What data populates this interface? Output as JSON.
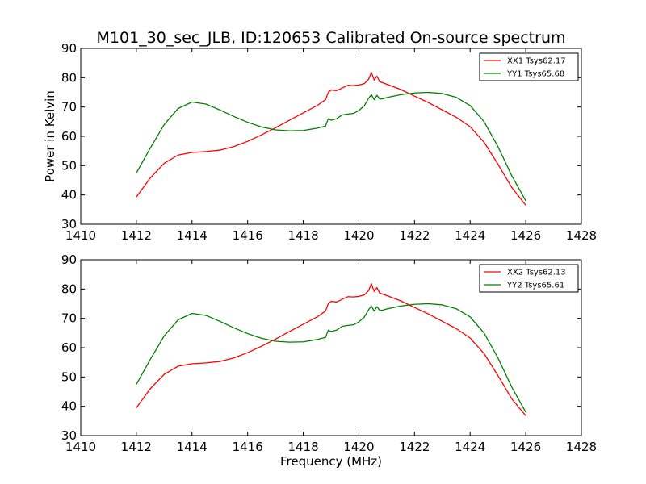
{
  "title": "M101_30_sec_JLB, ID:120653 Calibrated On-source spectrum",
  "colors": {
    "xx": "#ff0000",
    "yy": "#008000"
  },
  "chart_data": [
    {
      "type": "line",
      "xlabel": "",
      "ylabel": "Power in Kelvin",
      "xlim": [
        1410,
        1428
      ],
      "ylim": [
        30,
        90
      ],
      "xticks": [
        "1410",
        "1412",
        "1414",
        "1416",
        "1418",
        "1420",
        "1422",
        "1424",
        "1426",
        "1428"
      ],
      "yticks": [
        "30",
        "40",
        "50",
        "60",
        "70",
        "80",
        "90"
      ],
      "grid": false,
      "legend": "top-right",
      "series": [
        {
          "name": "XX1 Tsys62.17",
          "color": "#ff0000",
          "x": [
            1412.0,
            1412.5,
            1413.0,
            1413.5,
            1414.0,
            1414.5,
            1415.0,
            1415.5,
            1416.0,
            1416.5,
            1417.0,
            1417.5,
            1418.0,
            1418.5,
            1418.8,
            1418.9,
            1419.0,
            1419.2,
            1419.4,
            1419.6,
            1419.8,
            1420.0,
            1420.2,
            1420.35,
            1420.45,
            1420.55,
            1420.65,
            1420.75,
            1420.85,
            1421.0,
            1421.5,
            1422.0,
            1422.5,
            1423.0,
            1423.5,
            1424.0,
            1424.5,
            1425.0,
            1425.5,
            1426.0
          ],
          "y": [
            39.3,
            45.8,
            50.8,
            53.6,
            54.5,
            54.8,
            55.3,
            56.5,
            58.3,
            60.5,
            62.9,
            65.5,
            68.0,
            70.5,
            72.5,
            75.0,
            75.8,
            75.6,
            76.5,
            77.4,
            77.3,
            77.5,
            78.0,
            79.5,
            81.8,
            79.2,
            80.5,
            78.6,
            78.3,
            77.8,
            76.0,
            73.7,
            71.5,
            69.0,
            66.5,
            63.3,
            58.0,
            50.5,
            42.5,
            36.5
          ]
        },
        {
          "name": "YY1 Tsys65.68",
          "color": "#008000",
          "x": [
            1412.0,
            1412.5,
            1413.0,
            1413.5,
            1414.0,
            1414.5,
            1415.0,
            1415.5,
            1416.0,
            1416.5,
            1417.0,
            1417.5,
            1418.0,
            1418.5,
            1418.8,
            1418.9,
            1419.0,
            1419.2,
            1419.4,
            1419.6,
            1419.8,
            1420.0,
            1420.2,
            1420.35,
            1420.45,
            1420.55,
            1420.65,
            1420.75,
            1420.85,
            1421.0,
            1421.5,
            1422.0,
            1422.5,
            1423.0,
            1423.5,
            1424.0,
            1424.5,
            1425.0,
            1425.5,
            1426.0
          ],
          "y": [
            47.5,
            56.0,
            64.0,
            69.5,
            71.7,
            71.0,
            69.0,
            66.8,
            64.8,
            63.2,
            62.2,
            61.9,
            62.0,
            62.8,
            63.5,
            66.0,
            65.5,
            66.0,
            67.3,
            67.6,
            67.8,
            68.8,
            70.5,
            73.0,
            74.2,
            72.5,
            74.0,
            72.7,
            72.8,
            73.2,
            74.2,
            74.8,
            75.0,
            74.6,
            73.3,
            70.5,
            65.0,
            56.5,
            46.5,
            38.0
          ]
        }
      ]
    },
    {
      "type": "line",
      "xlabel": "Frequency (MHz)",
      "ylabel": "",
      "xlim": [
        1410,
        1428
      ],
      "ylim": [
        30,
        90
      ],
      "xticks": [
        "1410",
        "1412",
        "1414",
        "1416",
        "1418",
        "1420",
        "1422",
        "1424",
        "1426",
        "1428"
      ],
      "yticks": [
        "30",
        "40",
        "50",
        "60",
        "70",
        "80",
        "90"
      ],
      "grid": false,
      "legend": "top-right",
      "series": [
        {
          "name": "XX2 Tsys62.13",
          "color": "#ff0000",
          "x": [
            1412.0,
            1412.5,
            1413.0,
            1413.5,
            1414.0,
            1414.5,
            1415.0,
            1415.5,
            1416.0,
            1416.5,
            1417.0,
            1417.5,
            1418.0,
            1418.5,
            1418.8,
            1418.9,
            1419.0,
            1419.2,
            1419.4,
            1419.6,
            1419.8,
            1420.0,
            1420.2,
            1420.35,
            1420.45,
            1420.55,
            1420.65,
            1420.75,
            1420.85,
            1421.0,
            1421.5,
            1422.0,
            1422.5,
            1423.0,
            1423.5,
            1424.0,
            1424.5,
            1425.0,
            1425.5,
            1426.0
          ],
          "y": [
            39.5,
            46.0,
            50.9,
            53.7,
            54.5,
            54.8,
            55.3,
            56.5,
            58.3,
            60.5,
            62.9,
            65.5,
            68.0,
            70.5,
            72.5,
            75.0,
            75.8,
            75.6,
            76.5,
            77.4,
            77.3,
            77.5,
            78.0,
            79.5,
            81.8,
            79.2,
            80.5,
            78.6,
            78.3,
            77.8,
            76.0,
            73.7,
            71.5,
            69.0,
            66.5,
            63.3,
            58.0,
            50.5,
            42.5,
            36.8
          ]
        },
        {
          "name": "YY2 Tsys65.61",
          "color": "#008000",
          "x": [
            1412.0,
            1412.5,
            1413.0,
            1413.5,
            1414.0,
            1414.5,
            1415.0,
            1415.5,
            1416.0,
            1416.5,
            1417.0,
            1417.5,
            1418.0,
            1418.5,
            1418.8,
            1418.9,
            1419.0,
            1419.2,
            1419.4,
            1419.6,
            1419.8,
            1420.0,
            1420.2,
            1420.35,
            1420.45,
            1420.55,
            1420.65,
            1420.75,
            1420.85,
            1421.0,
            1421.5,
            1422.0,
            1422.5,
            1423.0,
            1423.5,
            1424.0,
            1424.5,
            1425.0,
            1425.5,
            1426.0
          ],
          "y": [
            47.5,
            56.0,
            64.0,
            69.5,
            71.7,
            71.0,
            69.0,
            66.8,
            64.8,
            63.2,
            62.2,
            61.9,
            62.0,
            62.8,
            63.5,
            66.0,
            65.5,
            66.0,
            67.3,
            67.6,
            67.8,
            68.8,
            70.5,
            73.0,
            74.2,
            72.5,
            74.0,
            72.7,
            72.8,
            73.2,
            74.2,
            74.8,
            75.0,
            74.6,
            73.3,
            70.5,
            65.0,
            56.5,
            46.5,
            38.0
          ]
        }
      ]
    }
  ]
}
